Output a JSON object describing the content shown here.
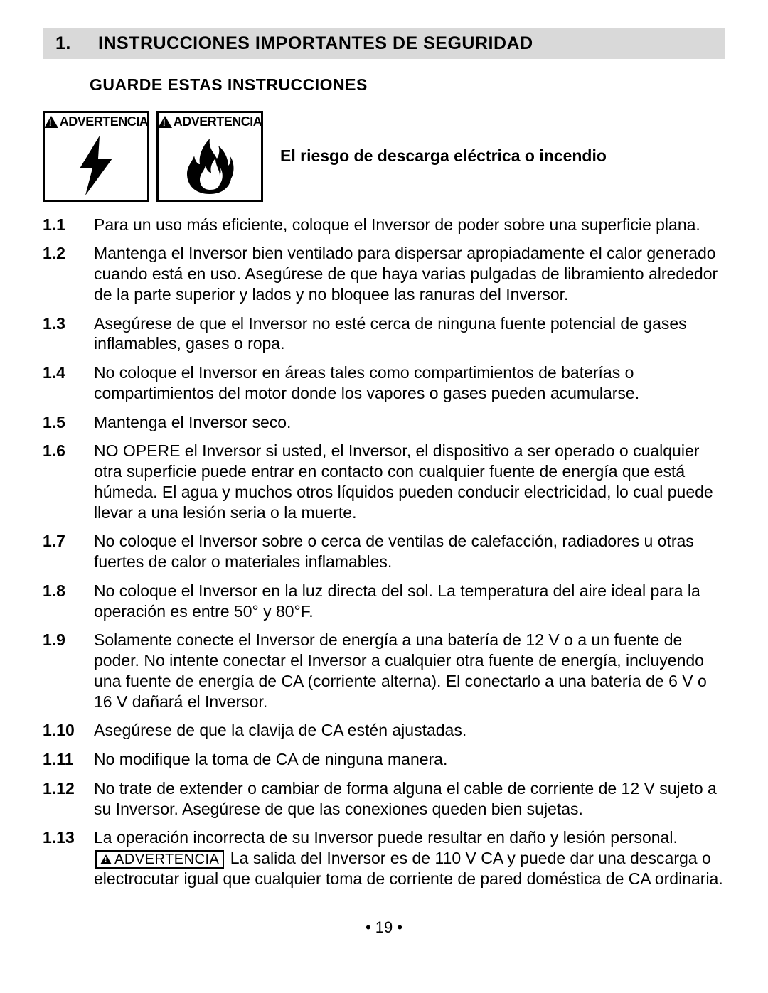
{
  "section": {
    "number": "1.",
    "title": "INSTRUCCIONES IMPORTANTES DE SEGURIDAD"
  },
  "subheading": "GUARDE ESTAS INSTRUCCIONES",
  "warning_label": "ADVERTENCIA",
  "risk_text": "El riesgo de descarga eléctrica o incendio",
  "inline_warning_label": "ADVERTENCIA",
  "items": [
    {
      "num": "1.1",
      "text": "Para un uso más eficiente, coloque el Inversor de poder sobre una superficie plana."
    },
    {
      "num": "1.2",
      "text": "Mantenga el Inversor bien ventilado para dispersar apropiadamente el calor generado cuando está en uso. Asegúrese de que haya varias pulgadas de libramiento alrededor de la parte superior y lados y no bloquee las ranuras del Inversor."
    },
    {
      "num": "1.3",
      "text": "Asegúrese de que el Inversor no esté cerca de ninguna fuente potencial de gases inflamables, gases o ropa."
    },
    {
      "num": "1.4",
      "text": "No coloque el Inversor en áreas tales como compartimientos de baterías o compartimientos del motor donde los vapores o gases pueden acumularse."
    },
    {
      "num": "1.5",
      "text": "Mantenga el Inversor seco."
    },
    {
      "num": "1.6",
      "text": "NO OPERE el Inversor si usted, el Inversor, el dispositivo a ser operado o cualquier otra superficie puede entrar en contacto con cualquier fuente de energía que está húmeda. El agua y muchos otros líquidos pueden conducir electricidad, lo cual puede llevar a una lesión seria o la muerte."
    },
    {
      "num": "1.7",
      "text": "No coloque el Inversor sobre o cerca de ventilas de calefacción, radiadores u otras fuertes de calor o materiales inflamables."
    },
    {
      "num": "1.8",
      "text": "No coloque el Inversor en la luz directa del sol. La temperatura del aire ideal para la operación es entre 50° y 80°F."
    },
    {
      "num": "1.9",
      "text": "Solamente conecte el Inversor de energía a una batería de 12 V o a un fuente de poder. No intente conectar el Inversor a cualquier otra fuente de energía, incluyendo una fuente de energía de CA (corriente alterna). El conectarlo a una batería de 6 V o 16 V dañará el Inversor."
    },
    {
      "num": "1.10",
      "text": "Asegúrese de que la clavija de CA estén ajustadas."
    },
    {
      "num": "1.11",
      "text": "No modifique la toma de CA de ninguna manera."
    },
    {
      "num": "1.12",
      "text": "No trate de extender o cambiar de forma alguna el cable de corriente de 12 V sujeto a su Inversor. Asegúrese de que las conexiones queden bien sujetas."
    }
  ],
  "item_13": {
    "num": "1.13",
    "text_before": "La operación incorrecta de su Inversor puede resultar en daño y lesión personal. ",
    "text_after": " La salida del Inversor es de 110 V CA y puede dar una descarga o electrocutar igual que cualquier toma de corriente de pared doméstica de CA ordinaria."
  },
  "page_number": "• 19 •",
  "colors": {
    "header_bg": "#d9d9d9",
    "text": "#000000",
    "page_bg": "#ffffff"
  }
}
